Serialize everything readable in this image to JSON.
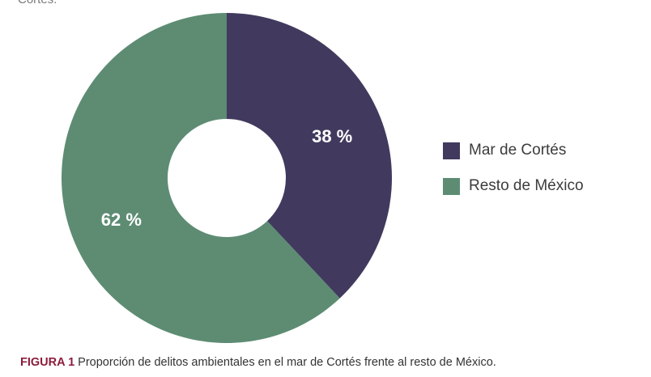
{
  "header": {
    "fragment_text": "Cortés."
  },
  "chart_data": {
    "type": "pie",
    "donut": true,
    "start_angle_deg": 0,
    "direction": "clockwise",
    "series": [
      {
        "name": "Mar de Cortés",
        "value": 38,
        "label": "38 %",
        "color": "#413a5e"
      },
      {
        "name": "Resto de México",
        "value": 62,
        "label": "62 %",
        "color": "#5d8c73"
      }
    ],
    "legend_position": "right",
    "label_color": "#ffffff"
  },
  "caption": {
    "label": "FIGURA 1",
    "text": " Proporción de delitos ambientales en el mar de Cortés frente al resto de México."
  }
}
